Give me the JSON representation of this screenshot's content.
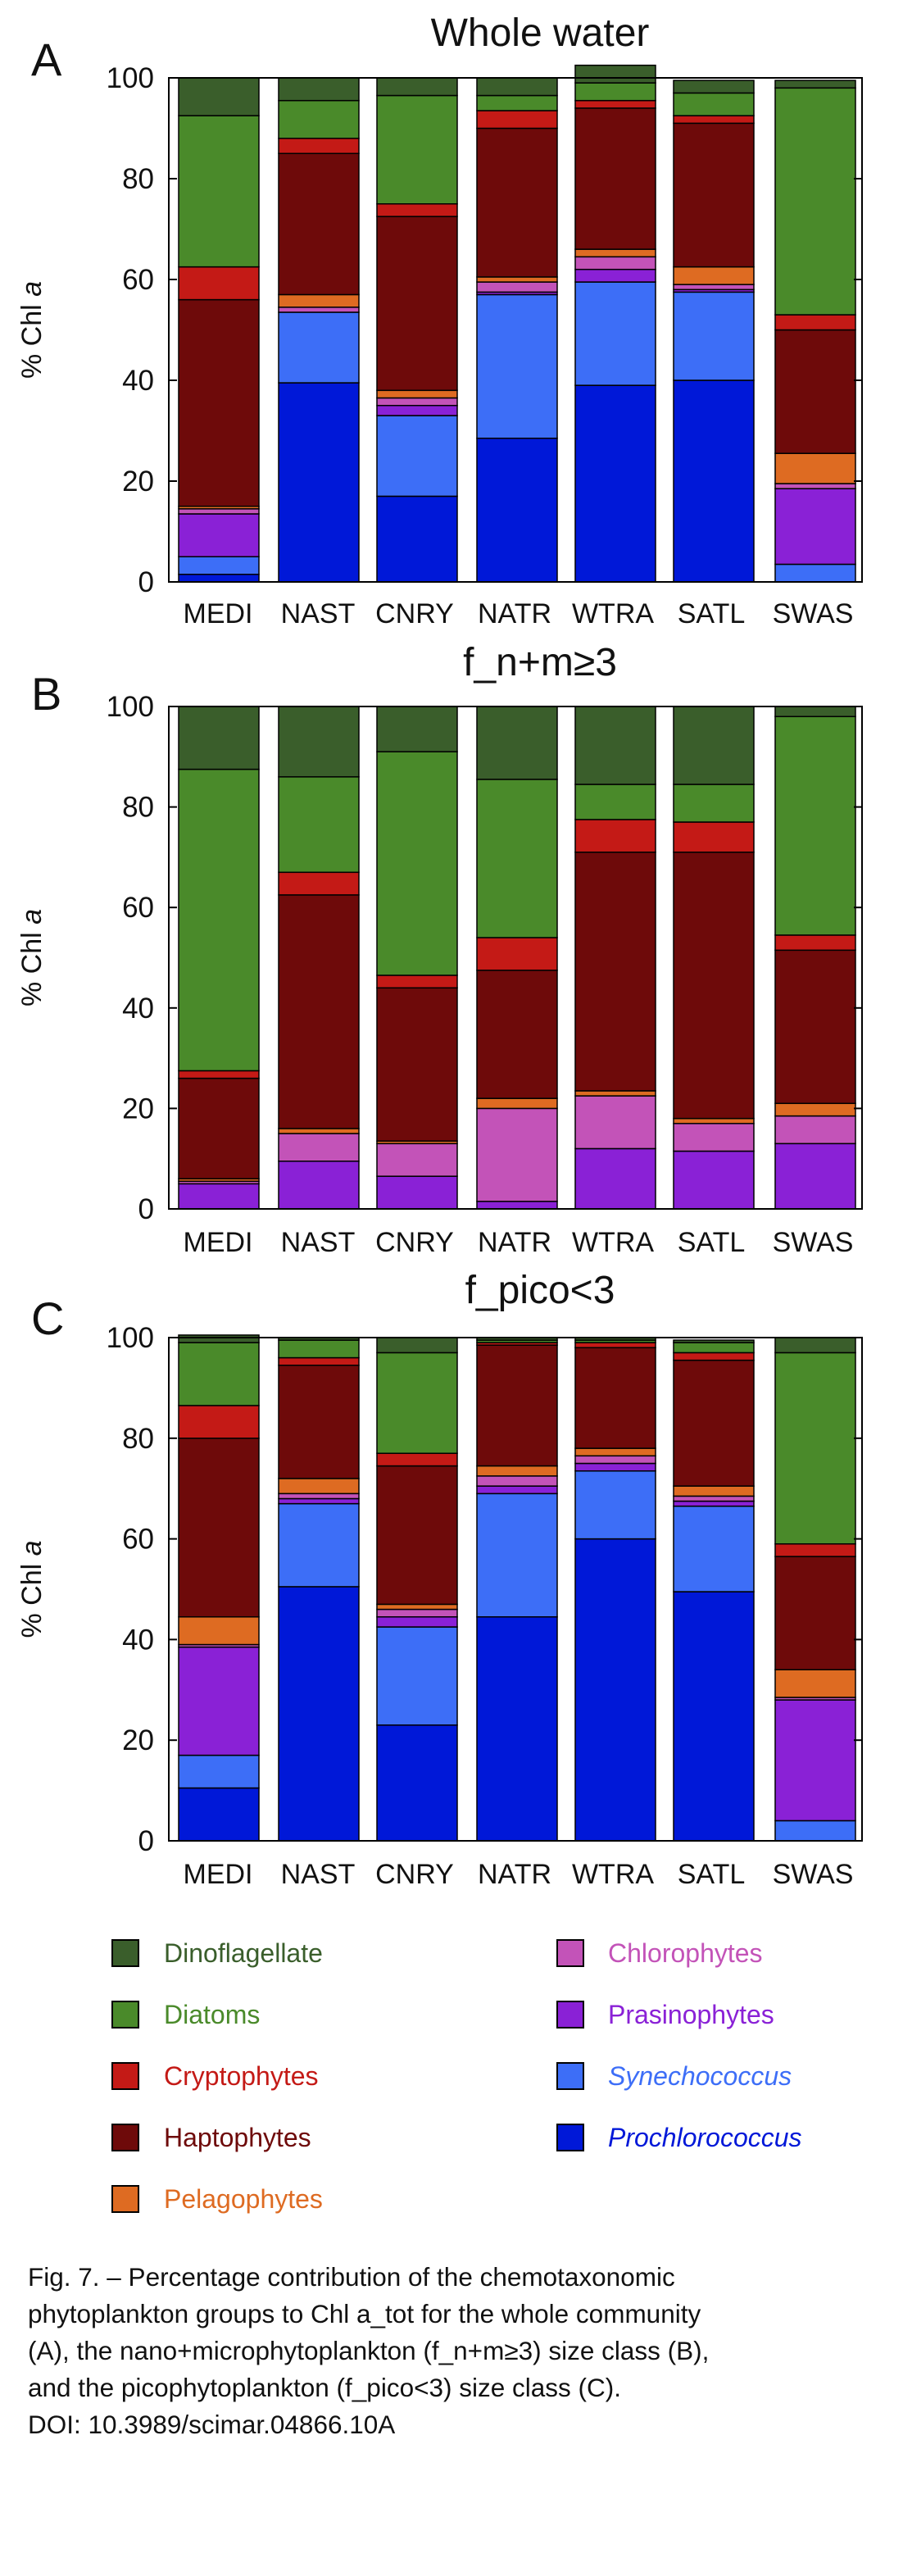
{
  "figure": {
    "panels_order": [
      "A",
      "B",
      "C"
    ]
  },
  "legend": {
    "items": [
      {
        "label": "Dinoflagellate",
        "color": "#3a5e2b",
        "text_color": "#3a5e2b",
        "italic": false
      },
      {
        "label": "Diatoms",
        "color": "#4a8a2a",
        "text_color": "#4a8a2a",
        "italic": false
      },
      {
        "label": "Cryptophytes",
        "color": "#c41a16",
        "text_color": "#c41a16",
        "italic": false
      },
      {
        "label": "Haptophytes",
        "color": "#6e0a0a",
        "text_color": "#6e0a0a",
        "italic": false
      },
      {
        "label": "Pelagophytes",
        "color": "#de6b22",
        "text_color": "#de6b22",
        "italic": false
      },
      {
        "label": "Chlorophytes",
        "color": "#c353b8",
        "text_color": "#c353b8",
        "italic": false
      },
      {
        "label": "Prasinophytes",
        "color": "#8a21d6",
        "text_color": "#8a21d6",
        "italic": false
      },
      {
        "label": "Synechococcus",
        "color": "#3d6ef7",
        "text_color": "#3d6ef7",
        "italic": true
      },
      {
        "label": "Prochlorococcus",
        "color": "#0018d8",
        "text_color": "#0018d8",
        "italic": true
      }
    ]
  },
  "caption": {
    "lines": [
      "Fig. 7. – Percentage contribution of the chemotaxonomic",
      "phytoplankton groups to Chl a_tot for the whole community",
      "(A), the nano+microphytoplankton (f_n+m≥3) size class (B),",
      "and the picophytoplankton (f_pico<3) size class (C).",
      "DOI: 10.3989/scimar.04866.10A"
    ]
  },
  "chart_data": [
    {
      "type": "bar",
      "stacked": true,
      "panel_letter": "A",
      "title": "Whole water",
      "ylabel": "% Chl a",
      "ylim": [
        0,
        100
      ],
      "yticks": [
        0,
        20,
        40,
        60,
        80,
        100
      ],
      "categories": [
        "MEDI",
        "NAST",
        "CNRY",
        "NATR",
        "WTRA",
        "SATL",
        "SWAS"
      ],
      "series": [
        {
          "name": "Prochlorococcus",
          "values": [
            1.5,
            39.5,
            17,
            28.5,
            39,
            40,
            0
          ]
        },
        {
          "name": "Synechococcus",
          "values": [
            3.5,
            14,
            16,
            28.5,
            20.5,
            17.5,
            3.5
          ]
        },
        {
          "name": "Prasinophytes",
          "values": [
            8.5,
            0,
            2,
            0.5,
            2.5,
            0.5,
            15
          ]
        },
        {
          "name": "Chlorophytes",
          "values": [
            1,
            1,
            1.5,
            2,
            2.5,
            1,
            1
          ]
        },
        {
          "name": "Pelagophytes",
          "values": [
            0.5,
            2.5,
            1.5,
            1,
            1.5,
            3.5,
            6
          ]
        },
        {
          "name": "Haptophytes",
          "values": [
            41,
            28,
            34.5,
            29.5,
            28,
            28.5,
            24.5
          ]
        },
        {
          "name": "Cryptophytes",
          "values": [
            6.5,
            3,
            2.5,
            3.5,
            1.5,
            1.5,
            3
          ]
        },
        {
          "name": "Diatoms",
          "values": [
            30,
            7.5,
            21.5,
            3,
            3.5,
            4.5,
            45
          ]
        },
        {
          "name": "Dinoflagellate",
          "values": [
            7.5,
            4.5,
            3.5,
            3.5,
            3.5,
            2.5,
            1.5
          ]
        }
      ]
    },
    {
      "type": "bar",
      "stacked": true,
      "panel_letter": "B",
      "title": "f_n+m≥3",
      "ylabel": "% Chl a",
      "ylim": [
        0,
        100
      ],
      "yticks": [
        0,
        20,
        40,
        60,
        80,
        100
      ],
      "categories": [
        "MEDI",
        "NAST",
        "CNRY",
        "NATR",
        "WTRA",
        "SATL",
        "SWAS"
      ],
      "series": [
        {
          "name": "Prochlorococcus",
          "values": [
            0,
            0,
            0,
            0,
            0,
            0,
            0
          ]
        },
        {
          "name": "Synechococcus",
          "values": [
            0,
            0,
            0,
            0,
            0,
            0,
            0
          ]
        },
        {
          "name": "Prasinophytes",
          "values": [
            5,
            9.5,
            6.5,
            1.5,
            12,
            11.5,
            13
          ]
        },
        {
          "name": "Chlorophytes",
          "values": [
            0.5,
            5.5,
            6.5,
            18.5,
            10.5,
            5.5,
            5.5
          ]
        },
        {
          "name": "Pelagophytes",
          "values": [
            0.5,
            1,
            0.5,
            2,
            1,
            1,
            2.5
          ]
        },
        {
          "name": "Haptophytes",
          "values": [
            20,
            46.5,
            30.5,
            25.5,
            47.5,
            53,
            30.5
          ]
        },
        {
          "name": "Cryptophytes",
          "values": [
            1.5,
            4.5,
            2.5,
            6.5,
            6.5,
            6,
            3
          ]
        },
        {
          "name": "Diatoms",
          "values": [
            60,
            19,
            44.5,
            31.5,
            7,
            7.5,
            43.5
          ]
        },
        {
          "name": "Dinoflagellate",
          "values": [
            12.5,
            14,
            9,
            14.5,
            15.5,
            15.5,
            2
          ]
        }
      ]
    },
    {
      "type": "bar",
      "stacked": true,
      "panel_letter": "C",
      "title": "f_pico<3",
      "ylabel": "% Chl a",
      "ylim": [
        0,
        100
      ],
      "yticks": [
        0,
        20,
        40,
        60,
        80,
        100
      ],
      "categories": [
        "MEDI",
        "NAST",
        "CNRY",
        "NATR",
        "WTRA",
        "SATL",
        "SWAS"
      ],
      "series": [
        {
          "name": "Prochlorococcus",
          "values": [
            10.5,
            50.5,
            23,
            44.5,
            60,
            49.5,
            0
          ]
        },
        {
          "name": "Synechococcus",
          "values": [
            6.5,
            16.5,
            19.5,
            24.5,
            13.5,
            17,
            4
          ]
        },
        {
          "name": "Prasinophytes",
          "values": [
            21.5,
            1,
            2,
            1.5,
            1.5,
            1,
            24
          ]
        },
        {
          "name": "Chlorophytes",
          "values": [
            0.5,
            1,
            1.5,
            2,
            1.5,
            1,
            0.5
          ]
        },
        {
          "name": "Pelagophytes",
          "values": [
            5.5,
            3,
            1,
            2,
            1.5,
            2,
            5.5
          ]
        },
        {
          "name": "Haptophytes",
          "values": [
            35.5,
            22.5,
            27.5,
            24,
            20,
            25,
            22.5
          ]
        },
        {
          "name": "Cryptophytes",
          "values": [
            6.5,
            1.5,
            2.5,
            0.5,
            1,
            1.5,
            2.5
          ]
        },
        {
          "name": "Diatoms",
          "values": [
            12.5,
            3.5,
            20,
            0.5,
            0.5,
            2,
            38
          ]
        },
        {
          "name": "Dinoflagellate",
          "values": [
            1.5,
            0.5,
            3,
            0.5,
            0.5,
            0.5,
            3
          ]
        }
      ]
    }
  ]
}
